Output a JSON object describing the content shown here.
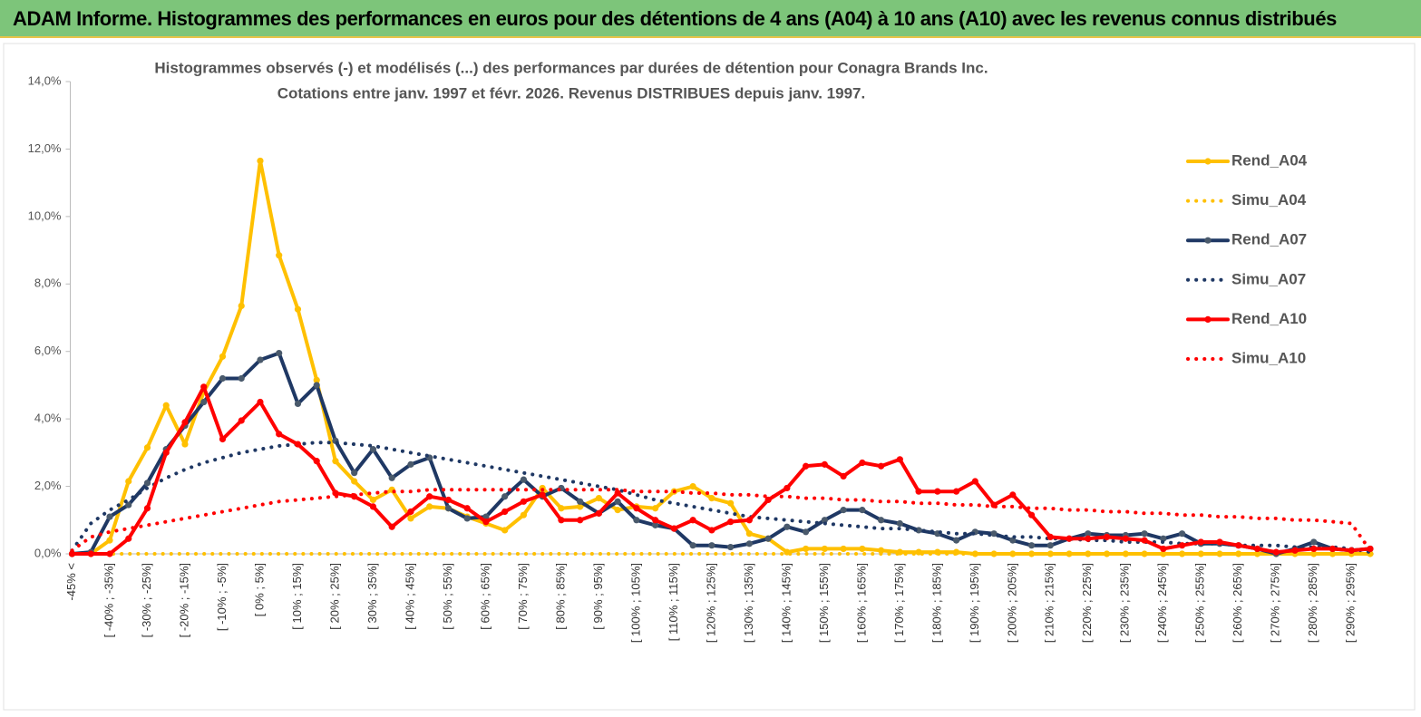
{
  "chart_data": {
    "type": "line",
    "header": "ADAM Informe. Histogrammes des performances en euros pour des détentions de 4 ans (A04) à 10 ans (A10) avec les revenus connus distribués",
    "title": "Histogrammes observés (-)  et modélisés (...) des performances par durées de détention pour Conagra Brands Inc.",
    "subtitle": "Cotations entre janv. 1997 et févr.  2026. Revenus DISTRIBUES depuis janv. 1997.",
    "categories": [
      "-45% <",
      null,
      "[ -40% ; -35%]",
      null,
      "[ -30% ; -25%]",
      null,
      "[ -20% ; -15%]",
      null,
      "[ -10% ; -5%]",
      null,
      "[ 0% ; 5%]",
      null,
      "[ 10% ; 15%]",
      null,
      "[ 20% ; 25%]",
      null,
      "[ 30% ; 35%]",
      null,
      "[ 40% ; 45%]",
      null,
      "[ 50% ; 55%]",
      null,
      "[ 60% ; 65%]",
      null,
      "[ 70% ; 75%]",
      null,
      "[ 80% ; 85%]",
      null,
      "[ 90% ; 95%]",
      null,
      "[ 100% ; 105%]",
      null,
      "[ 110% ; 115%]",
      null,
      "[ 120% ; 125%]",
      null,
      "[ 130% ; 135%]",
      null,
      "[ 140% ; 145%]",
      null,
      "[ 150% ; 155%]",
      null,
      "[ 160% ; 165%]",
      null,
      "[ 170% ; 175%]",
      null,
      "[ 180% ; 185%]",
      null,
      "[ 190% ; 195%]",
      null,
      "[ 200% ; 205%]",
      null,
      "[ 210% ; 215%]",
      null,
      "[ 220% ; 225%]",
      null,
      "[ 230% ; 235%]",
      null,
      "[ 240% ; 245%]",
      null,
      "[ 250% ; 255%]",
      null,
      "[ 260% ; 265%]",
      null,
      "[ 270% ; 275%]",
      null,
      "[ 280% ; 285%]",
      null,
      "[ 290% ; 295%]",
      null
    ],
    "ylim": [
      0,
      14
    ],
    "yticks": [
      {
        "value": 0,
        "label": "0,0%"
      },
      {
        "value": 2,
        "label": "2,0%"
      },
      {
        "value": 4,
        "label": "4,0%"
      },
      {
        "value": 6,
        "label": "6,0%"
      },
      {
        "value": 8,
        "label": "8,0%"
      },
      {
        "value": 10,
        "label": "10,0%"
      },
      {
        "value": 12,
        "label": "12,0%"
      },
      {
        "value": 14,
        "label": "14,0%"
      }
    ],
    "legend": "right",
    "series": [
      {
        "name": "Rend_A04",
        "color": "#ffc000",
        "style": "solid",
        "values": [
          0,
          0,
          0.4,
          2.15,
          3.15,
          4.4,
          3.25,
          4.8,
          5.85,
          7.35,
          11.65,
          8.85,
          7.25,
          5.15,
          2.75,
          2.15,
          1.6,
          1.9,
          1.05,
          1.4,
          1.35,
          1.1,
          0.9,
          0.7,
          1.15,
          1.95,
          1.35,
          1.4,
          1.65,
          1.3,
          1.4,
          1.35,
          1.85,
          2.0,
          1.65,
          1.5,
          0.6,
          0.45,
          0.05,
          0.15,
          0.15,
          0.15,
          0.15,
          0.1,
          0.05,
          0.05,
          0.05,
          0.05,
          0,
          0,
          0,
          0,
          0,
          0,
          0,
          0,
          0,
          0,
          0,
          0,
          0,
          0,
          0,
          0,
          0,
          0,
          0,
          0,
          0,
          0
        ]
      },
      {
        "name": "Simu_A04",
        "color": "#ffc000",
        "style": "dotted",
        "values": [
          0,
          0,
          0,
          0,
          0,
          0,
          0,
          0,
          0,
          0,
          0,
          0,
          0,
          0,
          0,
          0,
          0,
          0,
          0,
          0,
          0,
          0,
          0,
          0,
          0,
          0,
          0,
          0,
          0,
          0,
          0,
          0,
          0,
          0,
          0,
          0,
          0,
          0,
          0,
          0,
          0,
          0,
          0,
          0,
          0,
          0,
          0,
          0,
          0,
          0,
          0,
          0,
          0,
          0,
          0,
          0,
          0,
          0,
          0,
          0,
          0,
          0,
          0,
          0,
          0,
          0,
          0,
          0,
          0,
          0
        ]
      },
      {
        "name": "Rend_A07",
        "color": "#1f3864",
        "style": "solid",
        "values": [
          0,
          0.05,
          1.1,
          1.45,
          2.1,
          3.1,
          3.8,
          4.5,
          5.2,
          5.2,
          5.75,
          5.95,
          4.45,
          5.0,
          3.35,
          2.4,
          3.1,
          2.25,
          2.65,
          2.85,
          1.35,
          1.05,
          1.1,
          1.7,
          2.2,
          1.7,
          1.95,
          1.55,
          1.2,
          1.55,
          1.0,
          0.85,
          0.75,
          0.25,
          0.25,
          0.2,
          0.3,
          0.45,
          0.8,
          0.65,
          1.0,
          1.3,
          1.3,
          1.0,
          0.9,
          0.7,
          0.6,
          0.4,
          0.65,
          0.6,
          0.4,
          0.25,
          0.25,
          0.45,
          0.6,
          0.55,
          0.55,
          0.6,
          0.45,
          0.6,
          0.3,
          0.3,
          0.25,
          0.15,
          0.0,
          0.15,
          0.35,
          0.15,
          0.1,
          0.15
        ]
      },
      {
        "name": "Simu_A07",
        "color": "#1f3864",
        "style": "dotted",
        "values": [
          0.1,
          0.9,
          1.3,
          1.6,
          1.95,
          2.25,
          2.5,
          2.7,
          2.85,
          3.0,
          3.1,
          3.2,
          3.25,
          3.3,
          3.3,
          3.25,
          3.2,
          3.1,
          3.0,
          2.9,
          2.8,
          2.7,
          2.6,
          2.5,
          2.4,
          2.3,
          2.2,
          2.1,
          2.0,
          1.9,
          1.75,
          1.6,
          1.5,
          1.4,
          1.3,
          1.2,
          1.1,
          1.05,
          1.0,
          0.95,
          0.9,
          0.85,
          0.8,
          0.75,
          0.75,
          0.7,
          0.65,
          0.6,
          0.6,
          0.55,
          0.5,
          0.5,
          0.45,
          0.45,
          0.4,
          0.4,
          0.35,
          0.35,
          0.35,
          0.3,
          0.3,
          0.3,
          0.25,
          0.25,
          0.25,
          0.2,
          0.2,
          0.2,
          0.15,
          0.05
        ]
      },
      {
        "name": "Rend_A10",
        "color": "#ff0000",
        "style": "solid",
        "values": [
          0,
          0,
          0,
          0.45,
          1.35,
          3.0,
          3.9,
          4.95,
          3.4,
          3.95,
          4.5,
          3.55,
          3.25,
          2.75,
          1.8,
          1.7,
          1.4,
          0.8,
          1.25,
          1.7,
          1.6,
          1.35,
          0.95,
          1.25,
          1.55,
          1.75,
          1.0,
          1.0,
          1.2,
          1.8,
          1.35,
          1.0,
          0.75,
          1.0,
          0.7,
          0.95,
          1.0,
          1.6,
          1.95,
          2.6,
          2.65,
          2.3,
          2.7,
          2.6,
          2.8,
          1.85,
          1.85,
          1.85,
          2.15,
          1.45,
          1.75,
          1.15,
          0.5,
          0.45,
          0.45,
          0.5,
          0.45,
          0.4,
          0.15,
          0.25,
          0.35,
          0.35,
          0.25,
          0.15,
          0.05,
          0.1,
          0.15,
          0.15,
          0.1,
          0.15
        ]
      },
      {
        "name": "Simu_A10",
        "color": "#ff0000",
        "style": "dotted",
        "values": [
          0.1,
          0.5,
          0.65,
          0.75,
          0.85,
          0.95,
          1.05,
          1.15,
          1.25,
          1.35,
          1.45,
          1.55,
          1.6,
          1.65,
          1.7,
          1.75,
          1.8,
          1.85,
          1.85,
          1.9,
          1.9,
          1.9,
          1.9,
          1.9,
          1.9,
          1.9,
          1.9,
          1.9,
          1.9,
          1.9,
          1.85,
          1.85,
          1.85,
          1.8,
          1.8,
          1.75,
          1.75,
          1.7,
          1.7,
          1.65,
          1.65,
          1.6,
          1.6,
          1.55,
          1.55,
          1.5,
          1.5,
          1.45,
          1.45,
          1.4,
          1.4,
          1.35,
          1.35,
          1.3,
          1.3,
          1.25,
          1.25,
          1.2,
          1.2,
          1.15,
          1.15,
          1.1,
          1.1,
          1.05,
          1.05,
          1.0,
          1.0,
          0.95,
          0.9,
          0.1
        ]
      }
    ]
  }
}
